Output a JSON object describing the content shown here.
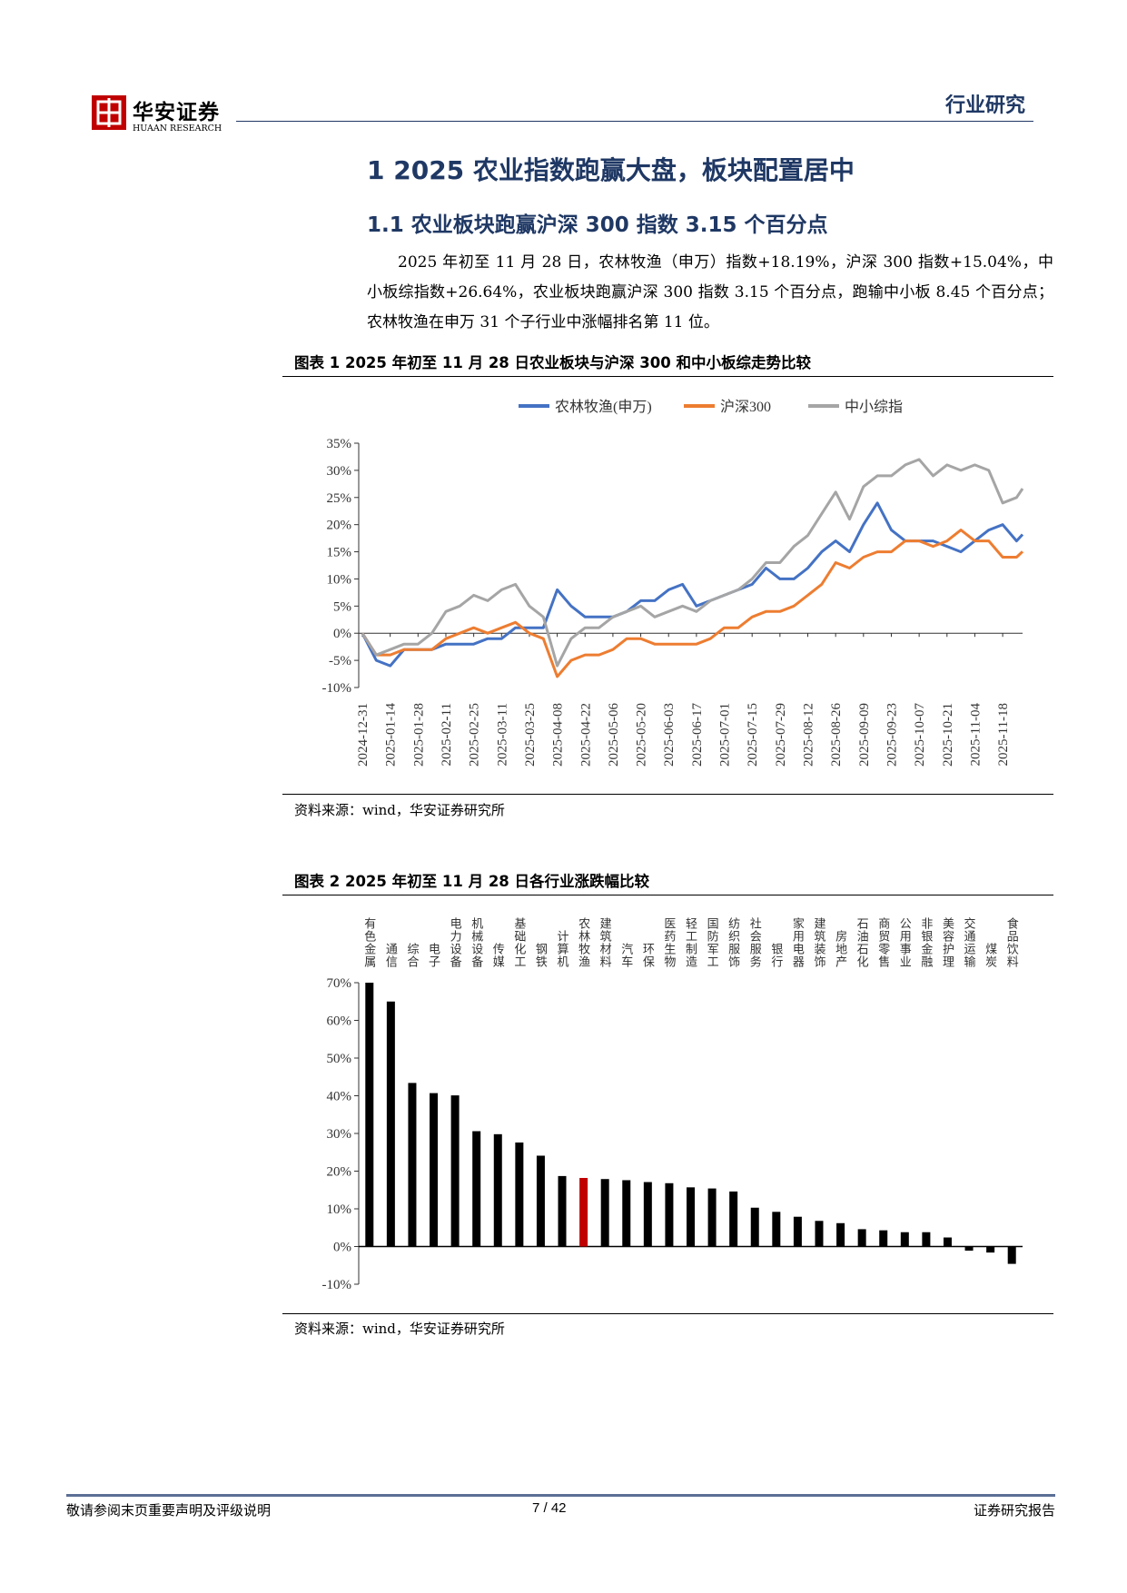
{
  "header": {
    "logo_cn": "华安证券",
    "logo_en": "HUAAN RESEARCH",
    "section": "行业研究"
  },
  "heading1": "1 2025 农业指数跑赢大盘，板块配置居中",
  "heading2": "1.1 农业板块跑赢沪深 300 指数 3.15 个百分点",
  "paragraph": "2025 年初至 11 月 28 日，农林牧渔（申万）指数+18.19%，沪深 300 指数+15.04%，中小板综指数+26.64%，农业板块跑赢沪深 300 指数 3.15 个百分点，跑输中小板 8.45 个百分点；农林牧渔在申万 31 个子行业中涨幅排名第 11 位。",
  "chart_data": [
    {
      "type": "line",
      "title": "图表 1 2025 年初至 11 月 28 日农业板块与沪深 300 和中小板综走势比较",
      "source": "资料来源：wind，华安证券研究所",
      "legend": "top",
      "x": [
        "2024-12-31",
        "2025-01-07",
        "2025-01-14",
        "2025-01-21",
        "2025-01-28",
        "2025-02-04",
        "2025-02-11",
        "2025-02-18",
        "2025-02-25",
        "2025-03-04",
        "2025-03-11",
        "2025-03-18",
        "2025-03-25",
        "2025-04-01",
        "2025-04-08",
        "2025-04-15",
        "2025-04-22",
        "2025-04-29",
        "2025-05-06",
        "2025-05-13",
        "2025-05-20",
        "2025-05-27",
        "2025-06-03",
        "2025-06-10",
        "2025-06-17",
        "2025-06-24",
        "2025-07-01",
        "2025-07-08",
        "2025-07-15",
        "2025-07-22",
        "2025-07-29",
        "2025-08-05",
        "2025-08-12",
        "2025-08-19",
        "2025-08-26",
        "2025-09-02",
        "2025-09-09",
        "2025-09-16",
        "2025-09-23",
        "2025-09-30",
        "2025-10-07",
        "2025-10-14",
        "2025-10-21",
        "2025-10-28",
        "2025-11-04",
        "2025-11-11",
        "2025-11-18",
        "2025-11-25",
        "2025-11-28"
      ],
      "series": [
        {
          "name": "农林牧渔(申万)",
          "color": "#4472c4",
          "values": [
            0,
            -5,
            -6,
            -3,
            -3,
            -3,
            -2,
            -2,
            -2,
            -1,
            -1,
            1,
            1,
            1,
            8,
            5,
            3,
            3,
            3,
            4,
            6,
            6,
            8,
            9,
            5,
            6,
            7,
            8,
            9,
            12,
            10,
            10,
            12,
            15,
            17,
            15,
            20,
            24,
            19,
            17,
            17,
            17,
            16,
            15,
            17,
            19,
            20,
            17,
            18.19
          ]
        },
        {
          "name": "沪深300",
          "color": "#ed7d31",
          "values": [
            0,
            -4,
            -4,
            -3,
            -3,
            -3,
            -1,
            0,
            1,
            0,
            1,
            2,
            0,
            -1,
            -8,
            -5,
            -4,
            -4,
            -3,
            -1,
            -1,
            -2,
            -2,
            -2,
            -2,
            -1,
            1,
            1,
            3,
            4,
            4,
            5,
            7,
            9,
            13,
            12,
            14,
            15,
            15,
            17,
            17,
            16,
            17,
            19,
            17,
            17,
            14,
            14,
            15.04
          ]
        },
        {
          "name": "中小综指",
          "color": "#a5a5a5",
          "values": [
            0,
            -4,
            -3,
            -2,
            -2,
            0,
            4,
            5,
            7,
            6,
            8,
            9,
            5,
            3,
            -6,
            -1,
            1,
            1,
            3,
            4,
            5,
            3,
            4,
            5,
            4,
            6,
            7,
            8,
            10,
            13,
            13,
            16,
            18,
            22,
            26,
            21,
            27,
            29,
            29,
            31,
            32,
            29,
            31,
            30,
            31,
            30,
            24,
            25,
            26.64
          ]
        }
      ],
      "xlim": [
        "2024-12-31",
        "2025-11-28"
      ],
      "xticks": [
        "2024-12-31",
        "2025-01-14",
        "2025-01-28",
        "2025-02-11",
        "2025-02-25",
        "2025-03-11",
        "2025-03-25",
        "2025-04-08",
        "2025-04-22",
        "2025-05-06",
        "2025-05-20",
        "2025-06-03",
        "2025-06-17",
        "2025-07-01",
        "2025-07-15",
        "2025-07-29",
        "2025-08-12",
        "2025-08-26",
        "2025-09-09",
        "2025-09-23",
        "2025-10-07",
        "2025-10-21",
        "2025-11-04",
        "2025-11-18"
      ],
      "ylim": [
        -10,
        35
      ],
      "yticks": [
        {
          "value": -10,
          "label": "-10%"
        },
        {
          "value": -5,
          "label": "-5%"
        },
        {
          "value": 0,
          "label": "0%"
        },
        {
          "value": 5,
          "label": "5%"
        },
        {
          "value": 10,
          "label": "10%"
        },
        {
          "value": 15,
          "label": "15%"
        },
        {
          "value": 20,
          "label": "20%"
        },
        {
          "value": 25,
          "label": "25%"
        },
        {
          "value": 30,
          "label": "30%"
        },
        {
          "value": 35,
          "label": "35%"
        }
      ]
    },
    {
      "type": "bar",
      "title": "图表 2 2025 年初至 11 月 28 日各行业涨跌幅比较",
      "source": "资料来源：wind，华安证券研究所",
      "categories": [
        "有色金属",
        "通信",
        "综合",
        "电子",
        "电力设备",
        "机械设备",
        "传媒",
        "基础化工",
        "钢铁",
        "计算机",
        "农林牧渔",
        "建筑材料",
        "汽车",
        "环保",
        "医药生物",
        "轻工制造",
        "国防军工",
        "纺织服饰",
        "社会服务",
        "银行",
        "家用电器",
        "建筑装饰",
        "房地产",
        "石油石化",
        "商贸零售",
        "公用事业",
        "非银金融",
        "美容护理",
        "交通运输",
        "煤炭",
        "食品饮料"
      ],
      "values": [
        70,
        65,
        43.4,
        40.7,
        40.1,
        30.6,
        29.8,
        27.6,
        24.1,
        18.7,
        18.19,
        17.9,
        17.6,
        17.1,
        16.8,
        15.7,
        15.4,
        14.6,
        10.3,
        9.2,
        7.9,
        6.8,
        6.2,
        4.6,
        4.3,
        3.8,
        3.8,
        2.4,
        -1.1,
        -1.6,
        -4.6
      ],
      "colors": [
        "#000000",
        "#000000",
        "#000000",
        "#000000",
        "#000000",
        "#000000",
        "#000000",
        "#000000",
        "#000000",
        "#000000",
        "#c00000",
        "#000000",
        "#000000",
        "#000000",
        "#000000",
        "#000000",
        "#000000",
        "#000000",
        "#000000",
        "#000000",
        "#000000",
        "#000000",
        "#000000",
        "#000000",
        "#000000",
        "#000000",
        "#000000",
        "#000000",
        "#000000",
        "#000000",
        "#000000"
      ],
      "ylim": [
        -10,
        70
      ],
      "yticks": [
        {
          "value": -10,
          "label": "-10%"
        },
        {
          "value": 0,
          "label": "0%"
        },
        {
          "value": 10,
          "label": "10%"
        },
        {
          "value": 20,
          "label": "20%"
        },
        {
          "value": 30,
          "label": "30%"
        },
        {
          "value": 40,
          "label": "40%"
        },
        {
          "value": 50,
          "label": "50%"
        },
        {
          "value": 60,
          "label": "60%"
        },
        {
          "value": 70,
          "label": "70%"
        }
      ]
    }
  ],
  "footer": {
    "disclaimer": "敬请参阅末页重要声明及评级说明",
    "page": "7 / 42",
    "report_type": "证券研究报告"
  }
}
